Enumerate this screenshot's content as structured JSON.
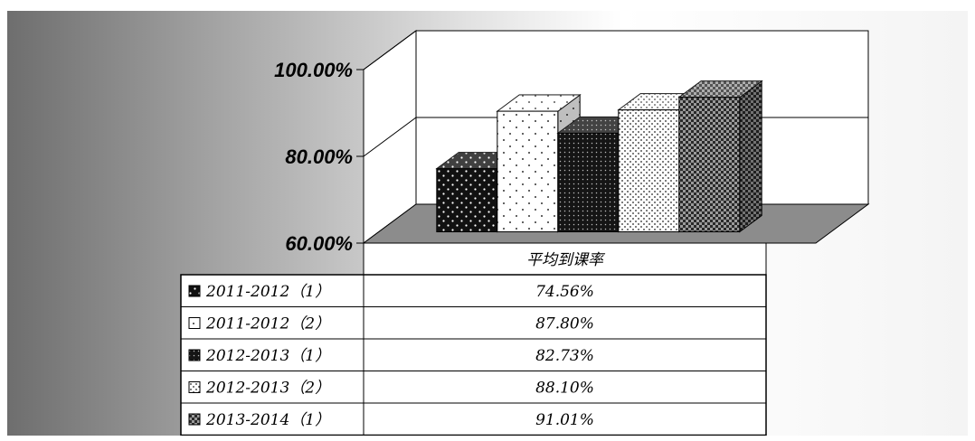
{
  "chart_data": {
    "type": "bar",
    "categories": [
      "平均到课率"
    ],
    "series": [
      {
        "name": "2011-2012（1）",
        "values": [
          74.56
        ],
        "display": "74.56%",
        "color": "#1a1a1a",
        "pattern": "dots-dense-dark"
      },
      {
        "name": "2011-2012（2）",
        "values": [
          87.8
        ],
        "display": "87.80%",
        "color": "#ffffff",
        "pattern": "dots-sparse-light"
      },
      {
        "name": "2012-2013（1）",
        "values": [
          82.73
        ],
        "display": "82.73%",
        "color": "#1a1a1a",
        "pattern": "dots-fine-dark"
      },
      {
        "name": "2012-2013（2）",
        "values": [
          88.1
        ],
        "display": "88.10%",
        "color": "#ffffff",
        "pattern": "dots-fine-light"
      },
      {
        "name": "2013-2014（1）",
        "values": [
          91.01
        ],
        "display": "91.01%",
        "color": "#8a8a8a",
        "pattern": "checker-grey"
      }
    ],
    "y_ticks": [
      "60.00%",
      "80.00%",
      "100.00%"
    ],
    "ylim": [
      60,
      100
    ],
    "grid": true,
    "legend": "data-table-below",
    "three_d": true
  }
}
